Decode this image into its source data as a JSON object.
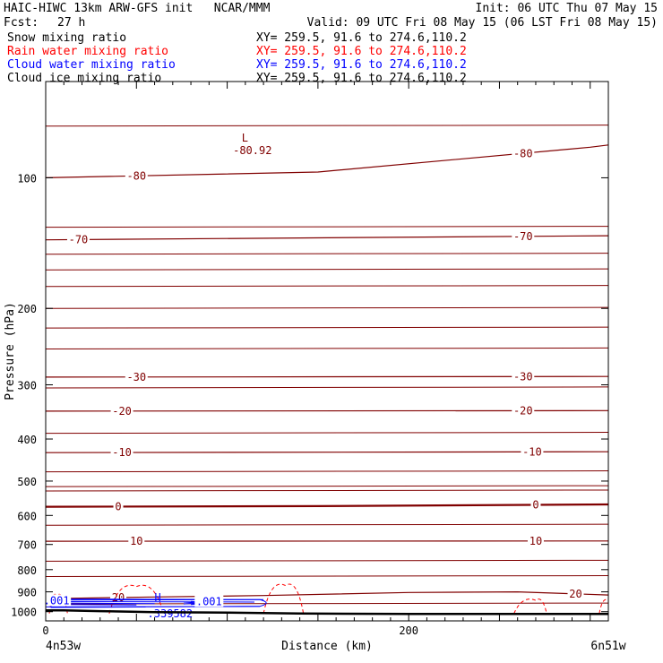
{
  "header": {
    "title": "HAIC-HIWC 13km ARW-GFS init   NCAR/MMM",
    "init": "Init: 06 UTC Thu 07 May 15",
    "fcst_label": "Fcst:",
    "fcst_value": "27 h",
    "valid": "Valid: 09 UTC Fri 08 May 15 (06 LST Fri 08 May 15)"
  },
  "fields": [
    {
      "name": "Snow mixing ratio",
      "xy": "XY= 259.5, 91.6 to 274.6,110.2",
      "color": "#000000"
    },
    {
      "name": "Rain water mixing ratio",
      "xy": "XY= 259.5, 91.6 to 274.6,110.2",
      "color": "#ff0000"
    },
    {
      "name": "Cloud water mixing ratio",
      "xy": "XY= 259.5, 91.6 to 274.6,110.2",
      "color": "#0000ff"
    },
    {
      "name": "Cloud ice mixing ratio",
      "xy": "XY= 259.5, 91.6 to 274.6,110.2",
      "color": "#000000"
    }
  ],
  "chart_data": {
    "type": "cross-section contour",
    "ylabel": "Pressure (hPa)",
    "xlabel": "Distance (km)",
    "y_ticks": [
      100,
      200,
      300,
      400,
      500,
      600,
      700,
      800,
      900,
      1000
    ],
    "x_ticks": [
      0,
      200
    ],
    "xlim": [
      0,
      310
    ],
    "ylim_top": 60,
    "y_scale": "log",
    "left_endpoint": "4n53w",
    "right_endpoint": "6n51w",
    "colors": {
      "temperature": "#800000",
      "rain": "#ff0000",
      "cloud_water": "#0000ff",
      "terrain": "#000000"
    },
    "temperature_contours": [
      {
        "value": -80,
        "x": [
          0,
          150,
          300,
          310
        ],
        "p": [
          100,
          97,
          85,
          84
        ],
        "labels": [
          {
            "text": "-80",
            "x": 50
          },
          {
            "text": "-80",
            "x": 263
          }
        ]
      },
      {
        "value": -70,
        "x": [
          0,
          310
        ],
        "p": [
          139,
          136
        ],
        "labels": [
          {
            "text": "-70",
            "x": 18
          },
          {
            "text": "-70",
            "x": 263
          }
        ]
      },
      {
        "value": -30,
        "x": [
          0,
          310
        ],
        "p": [
          288,
          287
        ],
        "labels": [
          {
            "text": "-30",
            "x": 50
          },
          {
            "text": "-30",
            "x": 263
          }
        ]
      },
      {
        "value": -20,
        "x": [
          0,
          310
        ],
        "p": [
          345,
          344
        ],
        "labels": [
          {
            "text": "-20",
            "x": 42
          },
          {
            "text": "-20",
            "x": 263
          }
        ]
      },
      {
        "value": -10,
        "x": [
          0,
          310
        ],
        "p": [
          430,
          428
        ],
        "labels": [
          {
            "text": "-10",
            "x": 42
          },
          {
            "text": "-10",
            "x": 268
          }
        ]
      },
      {
        "value": 0,
        "x": [
          0,
          150,
          310
        ],
        "p": [
          573,
          571,
          566
        ],
        "labels": [
          {
            "text": "0",
            "x": 40
          },
          {
            "text": "0",
            "x": 270
          }
        ]
      },
      {
        "value": 10,
        "x": [
          0,
          310
        ],
        "p": [
          688,
          687
        ],
        "labels": [
          {
            "text": "10",
            "x": 50
          },
          {
            "text": "10",
            "x": 270
          }
        ]
      },
      {
        "value": 20,
        "x": [
          0,
          60,
          120,
          200,
          260,
          310
        ],
        "p": [
          933,
          925,
          918,
          903,
          900,
          915
        ],
        "labels": [
          {
            "text": "20",
            "x": 40
          },
          {
            "text": "20",
            "x": 292
          }
        ]
      }
    ],
    "isolines_unlabeled_hPa": [
      76,
      130,
      150,
      163,
      178,
      200,
      222,
      248,
      305,
      388,
      476,
      515,
      527,
      632,
      765,
      830,
      960
    ],
    "extrema": [
      {
        "type": "L",
        "value": "-80.92",
        "x": 108,
        "p": 81
      },
      {
        "type": "H",
        "value": ".339582",
        "x": 60,
        "p": 963
      }
    ],
    "cloud_water_labels": [
      ".001",
      ".001"
    ],
    "rain_contour_peaks": [
      {
        "x_start": 2,
        "x_peak": 6,
        "x_end": 12,
        "p_peak": 918
      },
      {
        "x_start": 35,
        "x_peak": 50,
        "x_end": 65,
        "p_peak": 875
      },
      {
        "x_start": 120,
        "x_peak": 132,
        "x_end": 142,
        "p_peak": 870
      },
      {
        "x_start": 258,
        "x_peak": 270,
        "x_end": 276,
        "p_peak": 942
      },
      {
        "x_start": 305,
        "x_peak": 310,
        "x_end": 310,
        "p_peak": 945
      }
    ],
    "terrain": {
      "x": [
        0,
        10,
        30,
        60,
        100,
        140,
        200,
        250,
        310
      ],
      "p": [
        993,
        993,
        997,
        1002,
        1005,
        1010,
        1012,
        1012,
        1012
      ]
    }
  }
}
